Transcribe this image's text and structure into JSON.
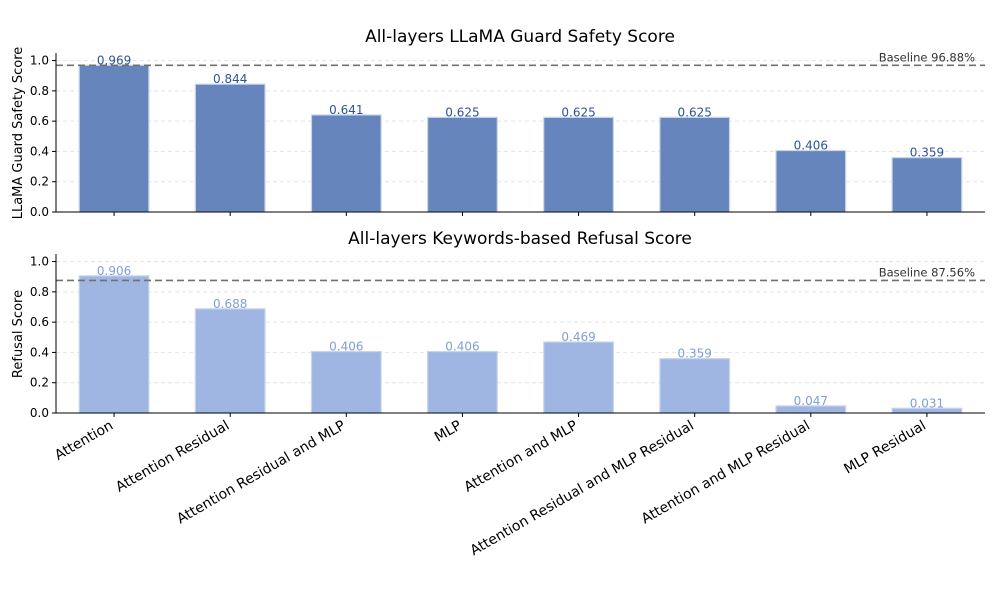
{
  "chart_data": [
    {
      "type": "bar",
      "title": "All-layers LLaMA Guard Safety Score",
      "ylabel": "LLaMA Guard Safety Score",
      "categories": [
        "Attention",
        "Attention Residual",
        "Attention Residual and MLP",
        "MLP",
        "Attention and MLP",
        "Attention Residual and MLP Residual",
        "Attention and MLP Residual",
        "MLP Residual"
      ],
      "values": [
        0.969,
        0.844,
        0.641,
        0.625,
        0.625,
        0.625,
        0.406,
        0.359
      ],
      "value_labels": [
        "0.969",
        "0.844",
        "0.641",
        "0.625",
        "0.625",
        "0.625",
        "0.406",
        "0.359"
      ],
      "ylim": [
        0,
        1.05
      ],
      "yticks": [
        0.0,
        0.2,
        0.4,
        0.6,
        0.8,
        1.0
      ],
      "ytick_labels": [
        "0.0",
        "0.2",
        "0.4",
        "0.6",
        "0.8",
        "1.0"
      ],
      "baseline": {
        "value": 0.9688,
        "label": "Baseline 96.88%"
      },
      "grid": true,
      "bar_color": "#6785bd",
      "label_color": "#2f5496"
    },
    {
      "type": "bar",
      "title": "All-layers Keywords-based Refusal Score",
      "ylabel": "Refusal Score",
      "categories": [
        "Attention",
        "Attention Residual",
        "Attention Residual and MLP",
        "MLP",
        "Attention and MLP",
        "Attention Residual and MLP Residual",
        "Attention and MLP Residual",
        "MLP Residual"
      ],
      "values": [
        0.906,
        0.688,
        0.406,
        0.406,
        0.469,
        0.359,
        0.047,
        0.031
      ],
      "value_labels": [
        "0.906",
        "0.688",
        "0.406",
        "0.406",
        "0.469",
        "0.359",
        "0.047",
        "0.031"
      ],
      "ylim": [
        0,
        1.05
      ],
      "yticks": [
        0.0,
        0.2,
        0.4,
        0.6,
        0.8,
        1.0
      ],
      "ytick_labels": [
        "0.0",
        "0.2",
        "0.4",
        "0.6",
        "0.8",
        "1.0"
      ],
      "baseline": {
        "value": 0.8756,
        "label": "Baseline 87.56%"
      },
      "grid": true,
      "bar_color": "#a0b6e2",
      "label_color": "#7f9fd6"
    }
  ]
}
